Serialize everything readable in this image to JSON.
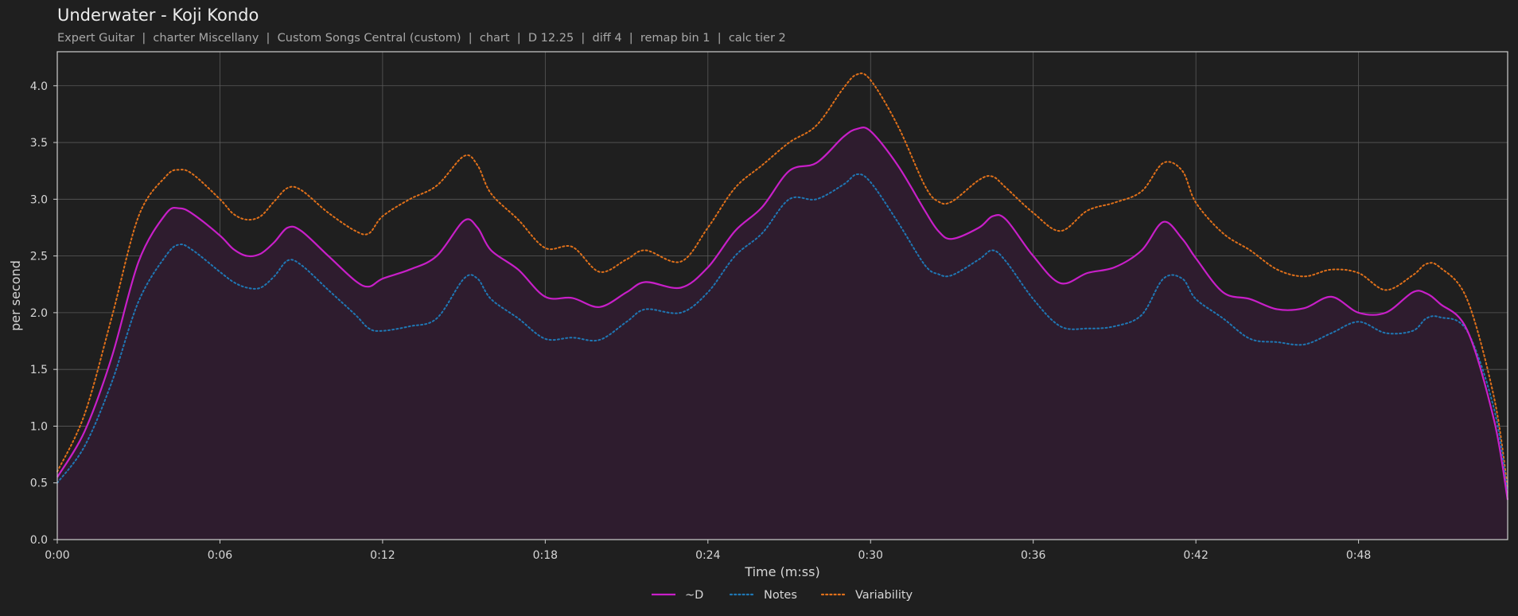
{
  "header": {
    "title": "Underwater - Koji Kondo",
    "subtitle": "Expert Guitar  |  charter Miscellany  |  Custom Songs Central (custom)  |  chart  |  D 12.25  |  diff 4  |  remap bin 1  |  calc tier 2"
  },
  "colors": {
    "background": "#1f1f1f",
    "grid": "#5a5a5a",
    "frame": "#cfcfcf",
    "d": "#c81fc8",
    "notes": "#1f77b4",
    "variability": "#e0701a",
    "fill": "#2e1c2e"
  },
  "chart_data": {
    "type": "line",
    "xlabel": "Time (m:ss)",
    "ylabel": "per second",
    "xlim": [
      0,
      53.5
    ],
    "ylim": [
      0,
      4.3
    ],
    "grid": true,
    "legend_position": "bottom-center",
    "x_ticks": [
      0,
      6,
      12,
      18,
      24,
      30,
      36,
      42,
      48
    ],
    "x_tick_labels": [
      "0:00",
      "0:06",
      "0:12",
      "0:18",
      "0:24",
      "0:30",
      "0:36",
      "0:42",
      "0:48"
    ],
    "y_ticks": [
      0.0,
      0.5,
      1.0,
      1.5,
      2.0,
      2.5,
      3.0,
      3.5,
      4.0
    ],
    "y_tick_labels": [
      "0.0",
      "0.5",
      "1.0",
      "1.5",
      "2.0",
      "2.5",
      "3.0",
      "3.5",
      "4.0"
    ],
    "series": [
      {
        "name": "~D",
        "style": "solid",
        "filled": true,
        "x": [
          0,
          1,
          2,
          3,
          4,
          4.5,
          5,
          6,
          6.5,
          7,
          7.5,
          8,
          8.5,
          9,
          10,
          11,
          11.5,
          12,
          13,
          14,
          15,
          15.5,
          16,
          17,
          18,
          19,
          20,
          21,
          21.7,
          23,
          24,
          25,
          26,
          27,
          28,
          29,
          29.5,
          30,
          31,
          32,
          32.5,
          33,
          34,
          34.5,
          35,
          36,
          37,
          38,
          39,
          40,
          40.8,
          41.5,
          42,
          43,
          44,
          45,
          46,
          47,
          48,
          49,
          50,
          50.5,
          51,
          52,
          53,
          53.5
        ],
        "y": [
          0.55,
          0.95,
          1.6,
          2.45,
          2.87,
          2.92,
          2.87,
          2.68,
          2.56,
          2.5,
          2.52,
          2.62,
          2.75,
          2.72,
          2.5,
          2.28,
          2.23,
          2.3,
          2.38,
          2.5,
          2.81,
          2.75,
          2.55,
          2.38,
          2.14,
          2.13,
          2.05,
          2.18,
          2.27,
          2.22,
          2.4,
          2.72,
          2.93,
          3.25,
          3.32,
          3.55,
          3.62,
          3.6,
          3.3,
          2.9,
          2.72,
          2.65,
          2.75,
          2.85,
          2.82,
          2.5,
          2.26,
          2.35,
          2.4,
          2.55,
          2.8,
          2.65,
          2.48,
          2.18,
          2.12,
          2.03,
          2.04,
          2.14,
          2.0,
          2.0,
          2.18,
          2.17,
          2.08,
          1.85,
          1.05,
          0.35
        ]
      },
      {
        "name": "Notes",
        "style": "dotted",
        "filled": false,
        "x": [
          0,
          1,
          2,
          3,
          4,
          4.5,
          5,
          6,
          6.5,
          7,
          7.5,
          8,
          8.5,
          9,
          10,
          11,
          11.5,
          12,
          13,
          14,
          15,
          15.5,
          16,
          17,
          18,
          19,
          20,
          21,
          21.7,
          23,
          24,
          25,
          26,
          27,
          28,
          29,
          29.5,
          30,
          31,
          32,
          32.5,
          33,
          34,
          34.5,
          35,
          36,
          37,
          38,
          39,
          40,
          40.8,
          41.5,
          42,
          43,
          44,
          45,
          46,
          47,
          48,
          49,
          50,
          50.5,
          51,
          52,
          53,
          53.5
        ],
        "y": [
          0.5,
          0.82,
          1.38,
          2.1,
          2.5,
          2.6,
          2.55,
          2.36,
          2.27,
          2.22,
          2.22,
          2.32,
          2.46,
          2.42,
          2.2,
          1.98,
          1.86,
          1.84,
          1.88,
          1.95,
          2.3,
          2.3,
          2.12,
          1.95,
          1.77,
          1.78,
          1.76,
          1.92,
          2.03,
          2.0,
          2.18,
          2.5,
          2.7,
          3.0,
          3.0,
          3.13,
          3.22,
          3.15,
          2.8,
          2.42,
          2.34,
          2.33,
          2.47,
          2.55,
          2.45,
          2.12,
          1.88,
          1.86,
          1.88,
          1.98,
          2.3,
          2.3,
          2.12,
          1.95,
          1.77,
          1.74,
          1.72,
          1.82,
          1.92,
          1.82,
          1.84,
          1.95,
          1.96,
          1.84,
          1.15,
          0.4
        ]
      },
      {
        "name": "Variability",
        "style": "dotted",
        "filled": false,
        "x": [
          0,
          1,
          2,
          3,
          4,
          4.5,
          5,
          6,
          6.5,
          7,
          7.5,
          8,
          8.5,
          9,
          10,
          11,
          11.5,
          12,
          13,
          14,
          15,
          15.5,
          16,
          17,
          18,
          19,
          20,
          21,
          21.7,
          23,
          24,
          25,
          26,
          27,
          28,
          29,
          29.5,
          30,
          31,
          32,
          32.5,
          33,
          34,
          34.5,
          35,
          36,
          37,
          38,
          39,
          40,
          40.8,
          41.5,
          42,
          43,
          44,
          45,
          46,
          47,
          48,
          49,
          50,
          50.5,
          51,
          52,
          53,
          53.5
        ],
        "y": [
          0.6,
          1.1,
          1.95,
          2.85,
          3.2,
          3.26,
          3.22,
          3.0,
          2.87,
          2.82,
          2.85,
          2.98,
          3.1,
          3.08,
          2.88,
          2.72,
          2.7,
          2.85,
          3.0,
          3.12,
          3.38,
          3.3,
          3.05,
          2.82,
          2.57,
          2.58,
          2.36,
          2.47,
          2.55,
          2.45,
          2.75,
          3.1,
          3.3,
          3.5,
          3.65,
          3.98,
          4.1,
          4.05,
          3.65,
          3.12,
          2.98,
          2.98,
          3.17,
          3.2,
          3.1,
          2.88,
          2.72,
          2.9,
          2.97,
          3.07,
          3.32,
          3.25,
          2.97,
          2.7,
          2.55,
          2.38,
          2.32,
          2.38,
          2.35,
          2.2,
          2.33,
          2.43,
          2.4,
          2.12,
          1.25,
          0.45
        ]
      }
    ]
  }
}
